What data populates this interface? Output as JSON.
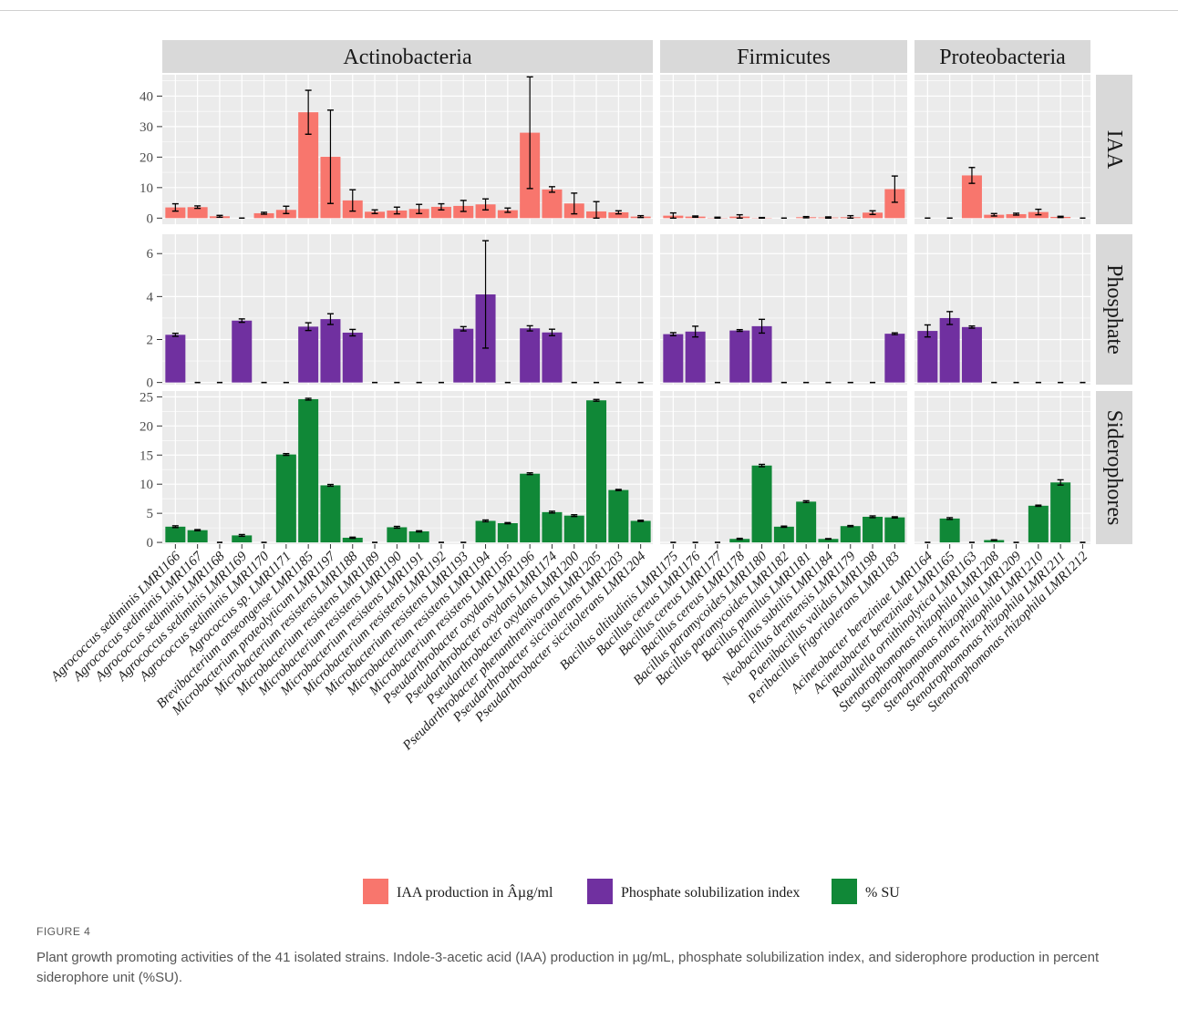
{
  "figure_label": "FIGURE 4",
  "caption": "Plant growth promoting activities of the 41 isolated strains. Indole-3-acetic acid (IAA) production in µg/mL, phosphate solubilization index, and siderophore production in percent siderophore unit (%SU).",
  "colors": {
    "IAA": "#F8766D",
    "Phosphate": "#7030A0",
    "Siderophores": "#108837",
    "panel_bg": "#EBEBEB",
    "strip_bg": "#D9D9D9",
    "grid": "#FFFFFF"
  },
  "chart_data": {
    "type": "bar",
    "layout": "facet_grid",
    "grid": true,
    "legend_position": "bottom",
    "col_facets": [
      "Actinobacteria",
      "Firmicutes",
      "Proteobacteria"
    ],
    "row_facets": [
      "IAA",
      "Phosphate",
      "Siderophores"
    ],
    "y_ticks": {
      "IAA": [
        0,
        10,
        20,
        30,
        40
      ],
      "Phosphate": [
        0,
        2,
        4,
        6
      ],
      "Siderophores": [
        0,
        5,
        10,
        15,
        20,
        25
      ]
    },
    "y_ranges": {
      "IAA": [
        -2,
        47
      ],
      "Phosphate": [
        -0.1,
        6.9
      ],
      "Siderophores": [
        -0.3,
        26
      ]
    },
    "legend": [
      {
        "key": "IAA",
        "label": "IAA production in Âµg/ml"
      },
      {
        "key": "Phosphate",
        "label": "Phosphate solubilization index"
      },
      {
        "key": "Siderophores",
        "label": "% SU"
      }
    ],
    "groups": [
      {
        "name": "Actinobacteria",
        "categories": [
          "Agrococcus sediminis LMR1166",
          "Agrococcus sediminis LMR1167",
          "Agrococcus sediminis LMR1168",
          "Agrococcus sediminis LMR1169",
          "Agrococcus sediminis LMR1170",
          "Agrococcus sp. LMR1171",
          "Brevibacterium anseongense LMR1185",
          "Microbacterium proteolyticum LMR1197",
          "Microbacterium resistens LMR1188",
          "Microbacterium resistens LMR1189",
          "Microbacterium resistens LMR1190",
          "Microbacterium resistens LMR1191",
          "Microbacterium resistens LMR1192",
          "Microbacterium resistens LMR1193",
          "Microbacterium resistens LMR1194",
          "Microbacterium resistens LMR1195",
          "Pseudarthrobacter oxydans LMR1196",
          "Pseudarthrobacter oxydans LMR1174",
          "Pseudarthrobacter oxydans LMR1200",
          "Pseudarthrobacter phenanthrenivorans LMR1205",
          "Pseudarthrobacter siccitolerans LMR1203",
          "Pseudarthrobacter siccitolerans LMR1204"
        ],
        "IAA": [
          3.5,
          3.6,
          0.6,
          0,
          1.6,
          2.7,
          34.7,
          20.1,
          5.8,
          2.1,
          2.5,
          3.0,
          3.7,
          4.0,
          4.5,
          2.6,
          28.0,
          9.4,
          4.8,
          2.2,
          1.9,
          0.5
        ],
        "IAA_err": [
          1.2,
          0.4,
          0.3,
          0,
          0.3,
          1.2,
          7.2,
          15.3,
          3.5,
          0.6,
          1.1,
          1.5,
          1.0,
          1.8,
          1.8,
          0.7,
          18.3,
          0.9,
          3.4,
          3.2,
          0.5,
          0.3
        ],
        "Phosphate": [
          2.22,
          0,
          0,
          2.88,
          0,
          0,
          2.6,
          2.95,
          2.32,
          0,
          0,
          0,
          0,
          2.5,
          4.1,
          0,
          2.52,
          2.33,
          0,
          0,
          0,
          0
        ],
        "Phosphate_err": [
          0.07,
          0,
          0,
          0.08,
          0,
          0,
          0.18,
          0.25,
          0.15,
          0,
          0,
          0,
          0,
          0.1,
          2.5,
          0,
          0.12,
          0.15,
          0,
          0,
          0,
          0
        ],
        "Siderophores": [
          2.7,
          2.1,
          0,
          1.2,
          0,
          15.1,
          24.6,
          9.8,
          0.8,
          0,
          2.6,
          1.9,
          0,
          0,
          3.7,
          3.3,
          11.8,
          5.2,
          4.6,
          24.4,
          9.0,
          3.7
        ],
        "Siderophores_err": [
          0.15,
          0.1,
          0,
          0.15,
          0,
          0.15,
          0.15,
          0.15,
          0.1,
          0,
          0.15,
          0.1,
          0,
          0,
          0.15,
          0.1,
          0.15,
          0.15,
          0.15,
          0.15,
          0.1,
          0.1
        ]
      },
      {
        "name": "Firmicutes",
        "categories": [
          "Bacillus altitudinis LMR1175",
          "Bacillus cereus LMR1176",
          "Bacillus cereus LMR1177",
          "Bacillus cereus LMR1178",
          "Bacillus paramycoides LMR1180",
          "Bacillus paramycoides LMR1182",
          "Bacillus pumilus LMR1181",
          "Bacillus subtilis LMR1184",
          "Neobacillus drentensis LMR1179",
          "Paenibacillus validus LMR1198",
          "Peribacillus frigoritolerans LMR1183"
        ],
        "IAA": [
          0.8,
          0.5,
          0.1,
          0.5,
          0.1,
          0,
          0.3,
          0.2,
          0.3,
          1.8,
          9.5
        ],
        "IAA_err": [
          0.9,
          0.2,
          0.2,
          0.6,
          0.1,
          0,
          0.2,
          0.2,
          0.5,
          0.6,
          4.3
        ],
        "Phosphate": [
          2.25,
          2.37,
          0,
          2.42,
          2.62,
          0,
          0,
          0,
          0,
          0,
          2.27
        ],
        "Phosphate_err": [
          0.07,
          0.25,
          0,
          0.04,
          0.32,
          0,
          0,
          0,
          0,
          0,
          0.04
        ],
        "Siderophores": [
          0,
          0,
          0,
          0.6,
          13.2,
          2.7,
          7.0,
          0.6,
          2.8,
          4.4,
          4.3
        ],
        "Siderophores_err": [
          0,
          0,
          0,
          0.1,
          0.2,
          0.1,
          0.15,
          0.05,
          0.1,
          0.15,
          0.1
        ]
      },
      {
        "name": "Proteobacteria",
        "categories": [
          "Acinetobacter bereziniae LMR1164",
          "Acinetobacter bereziniae LMR1165",
          "Raoultella ornithinolytica LMR1163",
          "Stenotrophomonas rhizophila LMR1208",
          "Stenotrophomonas rhizophila LMR1209",
          "Stenotrophomonas rhizophila LMR1210",
          "Stenotrophomonas rhizophila LMR1211",
          "Stenotrophomonas rhizophila LMR1212"
        ],
        "IAA": [
          0,
          0,
          14.0,
          1.1,
          1.3,
          2.0,
          0.4,
          0
        ],
        "IAA_err": [
          0,
          0,
          2.6,
          0.4,
          0.3,
          0.9,
          0.2,
          0
        ],
        "Phosphate": [
          2.4,
          3.0,
          2.58,
          0,
          0,
          0,
          0,
          0
        ],
        "Phosphate_err": [
          0.28,
          0.3,
          0.05,
          0,
          0,
          0,
          0,
          0
        ],
        "Siderophores": [
          0,
          4.1,
          0,
          0.4,
          0,
          6.3,
          10.3,
          0
        ],
        "Siderophores_err": [
          0,
          0.15,
          0,
          0.05,
          0,
          0.1,
          0.45,
          0
        ]
      }
    ]
  }
}
